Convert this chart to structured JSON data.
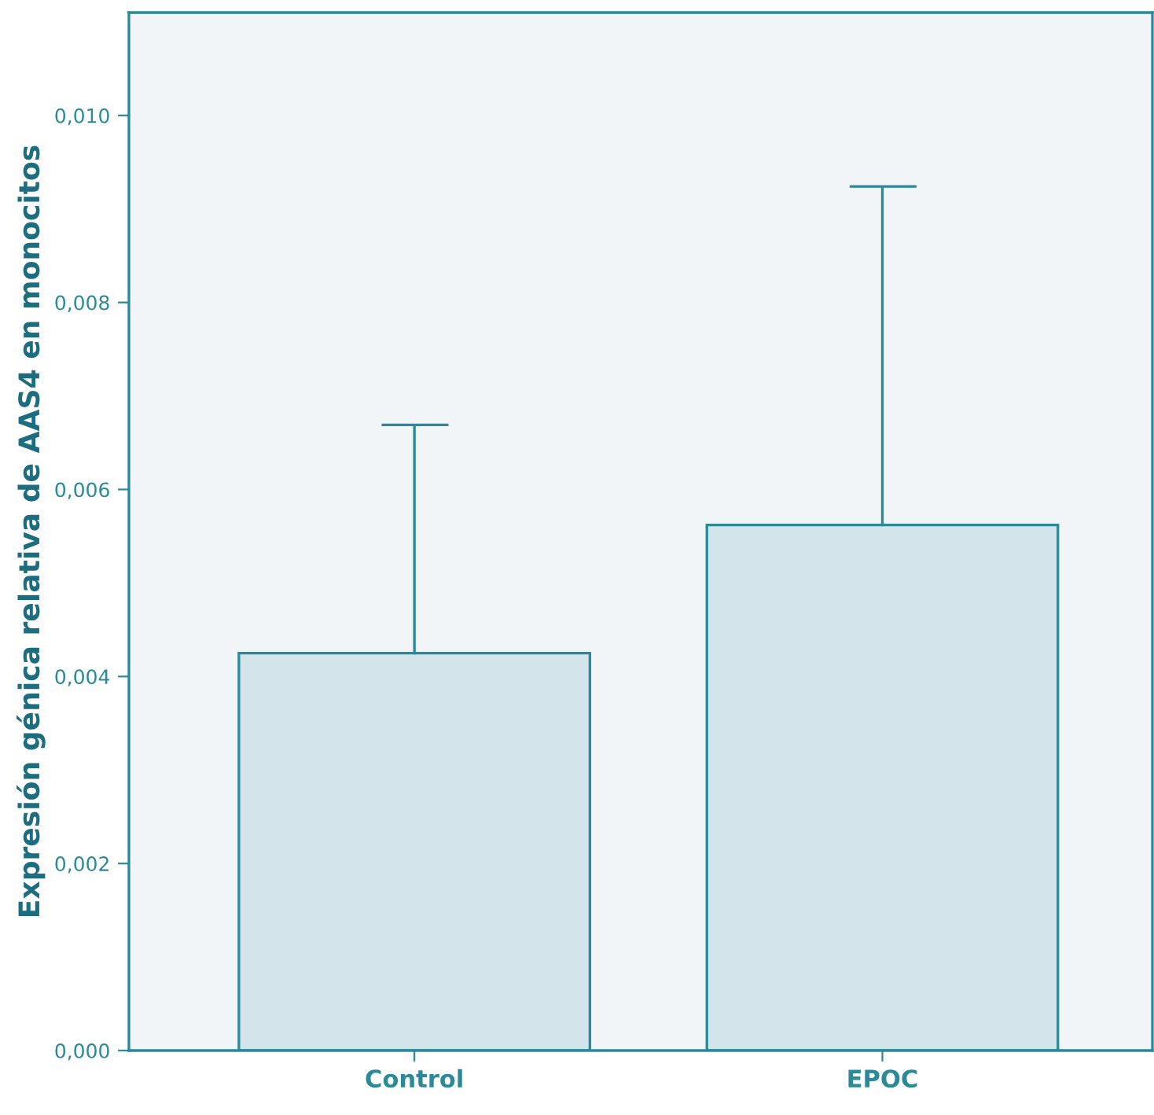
{
  "chart_data": {
    "type": "bar",
    "ylabel": "Expresión génica relativa de AAS4 en monocitos",
    "categories": [
      "Control",
      "EPOC"
    ],
    "values": [
      0.00425,
      0.00562
    ],
    "errors": [
      [
        0.00425,
        0.00669
      ],
      [
        0.00562,
        0.00924
      ]
    ],
    "color": "#d3e4ea",
    "ylim": [
      0,
      0.0111
    ],
    "yticks": [
      {
        "value": 0,
        "label": "0,000"
      },
      {
        "value": 0.002,
        "label": "0,002"
      },
      {
        "value": 0.004,
        "label": "0,004"
      },
      {
        "value": 0.006,
        "label": "0,006"
      },
      {
        "value": 0.008,
        "label": "0,008"
      },
      {
        "value": 0.01,
        "label": "0,010"
      }
    ],
    "grid": false
  }
}
